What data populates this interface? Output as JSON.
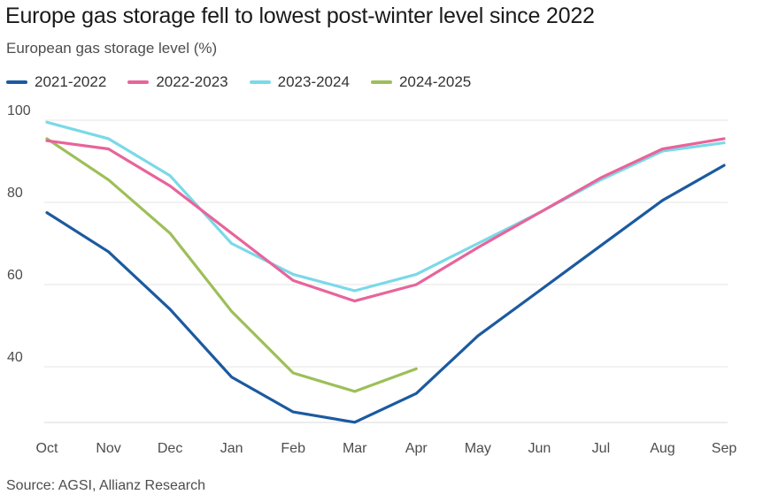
{
  "header": {
    "title": "Europe gas storage fell to lowest post-winter level since 2022",
    "subtitle": "European gas storage level (%)"
  },
  "footer": {
    "source": "Source: AGSI, Allianz Research"
  },
  "chart_data": {
    "type": "line",
    "title": "Europe gas storage fell to lowest post-winter level since 2022",
    "subtitle": "European gas storage level (%)",
    "xlabel": "",
    "ylabel": "",
    "categories": [
      "Oct",
      "Nov",
      "Dec",
      "Jan",
      "Feb",
      "Mar",
      "Apr",
      "May",
      "Jun",
      "Jul",
      "Aug",
      "Sep"
    ],
    "yticks": [
      40,
      60,
      80,
      100
    ],
    "ylim": [
      26,
      102
    ],
    "grid": true,
    "legend_position": "top-left",
    "series": [
      {
        "name": "2021-2022",
        "color": "#1b5aa0",
        "values": [
          77.5,
          68,
          54,
          37.5,
          29,
          26.5,
          33.5,
          47.5,
          58.5,
          69.5,
          80.5,
          89
        ]
      },
      {
        "name": "2022-2023",
        "color": "#e8649a",
        "values": [
          95,
          93,
          84,
          72.5,
          61,
          56,
          60,
          69,
          77.5,
          86,
          93,
          95.5
        ]
      },
      {
        "name": "2023-2024",
        "color": "#7ad9e8",
        "values": [
          99.5,
          95.5,
          86.5,
          70,
          62.5,
          58.5,
          62.5,
          70,
          77.5,
          85.5,
          92.5,
          94.5
        ]
      },
      {
        "name": "2024-2025",
        "color": "#9dbf58",
        "values": [
          95.5,
          85.5,
          72.5,
          53.5,
          38.5,
          34,
          39.5,
          null,
          null,
          null,
          null,
          null
        ]
      }
    ]
  }
}
